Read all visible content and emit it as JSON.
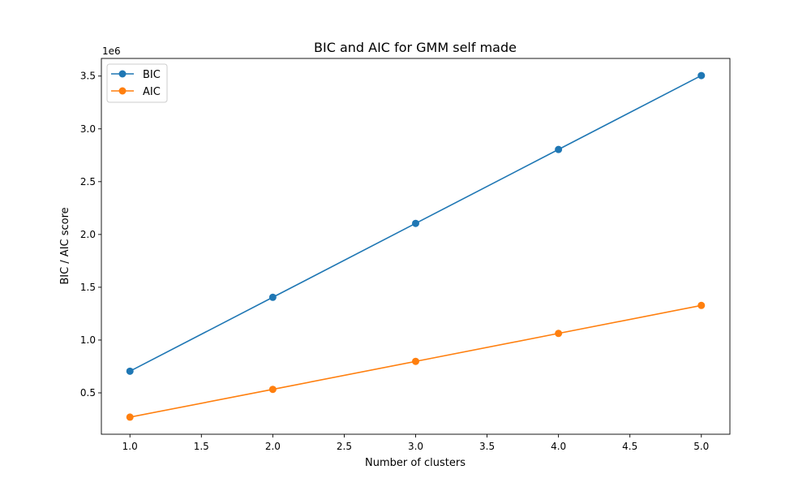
{
  "chart_data": {
    "type": "line",
    "title": "BIC and AIC for GMM self made",
    "xlabel": "Number of clusters",
    "ylabel": "BIC / AIC score",
    "y_offset_label": "1e6",
    "x": [
      1,
      2,
      3,
      4,
      5
    ],
    "series": [
      {
        "name": "BIC",
        "color": "#1f77b4",
        "values": [
          0.705,
          1.405,
          2.105,
          2.805,
          3.505
        ]
      },
      {
        "name": "AIC",
        "color": "#ff7f0e",
        "values": [
          0.27,
          0.533,
          0.798,
          1.063,
          1.328
        ]
      }
    ],
    "xlim": [
      0.8,
      5.2
    ],
    "ylim": [
      0.108,
      3.667
    ],
    "x_ticks": [
      1.0,
      1.5,
      2.0,
      2.5,
      3.0,
      3.5,
      4.0,
      4.5,
      5.0
    ],
    "x_tick_labels": [
      "1.0",
      "1.5",
      "2.0",
      "2.5",
      "3.0",
      "3.5",
      "4.0",
      "4.5",
      "5.0"
    ],
    "y_ticks": [
      0.5,
      1.0,
      1.5,
      2.0,
      2.5,
      3.0,
      3.5
    ],
    "y_tick_labels": [
      "0.5",
      "1.0",
      "1.5",
      "2.0",
      "2.5",
      "3.0",
      "3.5"
    ],
    "grid": false,
    "legend_position": "top-left"
  }
}
